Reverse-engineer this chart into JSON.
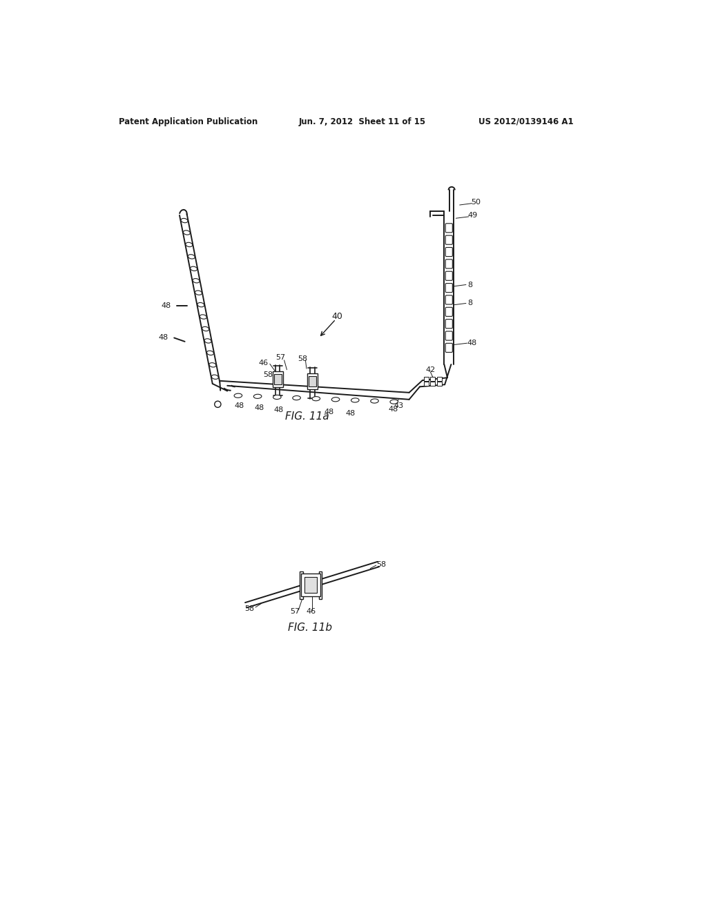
{
  "background_color": "#ffffff",
  "header_left": "Patent Application Publication",
  "header_center": "Jun. 7, 2012  Sheet 11 of 15",
  "header_right": "US 2012/0139146 A1",
  "fig_11a_label": "FIG. 11a",
  "fig_11b_label": "FIG. 11b",
  "text_color": "#1a1a1a",
  "line_color": "#1a1a1a"
}
